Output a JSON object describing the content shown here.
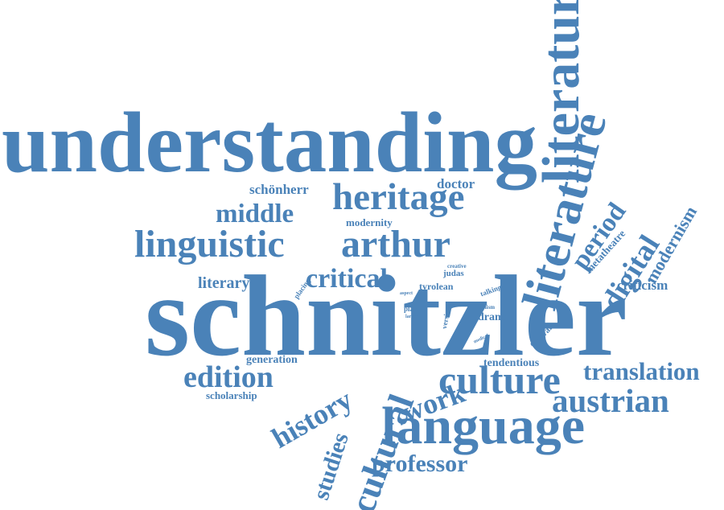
{
  "word_color": "#4A82B8",
  "background": "#FFFFFF",
  "words": [
    {
      "key": "schnitzler",
      "text": "schnitzler"
    },
    {
      "key": "understanding",
      "text": "understanding"
    },
    {
      "key": "literature_top",
      "text": "literature"
    },
    {
      "key": "literature_mid",
      "text": "literature"
    },
    {
      "key": "language",
      "text": "language"
    },
    {
      "key": "culture",
      "text": "culture"
    },
    {
      "key": "linguistic",
      "text": "linguistic"
    },
    {
      "key": "arthur",
      "text": "arthur"
    },
    {
      "key": "heritage",
      "text": "heritage"
    },
    {
      "key": "austrian",
      "text": "austrian"
    },
    {
      "key": "translation",
      "text": "translation"
    },
    {
      "key": "cultural",
      "text": "cultural"
    },
    {
      "key": "history",
      "text": "history"
    },
    {
      "key": "edition",
      "text": "edition"
    },
    {
      "key": "work",
      "text": "work"
    },
    {
      "key": "professor",
      "text": "professor"
    },
    {
      "key": "critical",
      "text": "critical"
    },
    {
      "key": "middle",
      "text": "middle"
    },
    {
      "key": "digital",
      "text": "digital"
    },
    {
      "key": "period",
      "text": "period"
    },
    {
      "key": "studies",
      "text": "studies"
    },
    {
      "key": "modernism",
      "text": "modernism"
    },
    {
      "key": "criticism",
      "text": "criticism"
    },
    {
      "key": "literary",
      "text": "literary"
    },
    {
      "key": "schonherr",
      "text": "schönherr"
    },
    {
      "key": "doctor",
      "text": "doctor"
    },
    {
      "key": "modernity",
      "text": "modernity"
    },
    {
      "key": "metatheatre",
      "text": "metatheatre"
    },
    {
      "key": "generation",
      "text": "generation"
    },
    {
      "key": "scholarship",
      "text": "scholarship"
    },
    {
      "key": "tendentious",
      "text": "tendentious"
    },
    {
      "key": "drama",
      "text": "drama"
    },
    {
      "key": "tyrolean",
      "text": "tyrolean"
    },
    {
      "key": "judas",
      "text": "judas"
    },
    {
      "key": "festival",
      "text": "festival"
    },
    {
      "key": "placing",
      "text": "placing"
    },
    {
      "key": "creative",
      "text": "creative"
    },
    {
      "key": "talking",
      "text": "talking"
    },
    {
      "key": "aspect",
      "text": "aspect"
    },
    {
      "key": "place",
      "text": "place"
    },
    {
      "key": "larger",
      "text": "larger"
    },
    {
      "key": "realism",
      "text": "realism"
    },
    {
      "key": "version",
      "text": "version"
    },
    {
      "key": "medical",
      "text": "medical"
    }
  ]
}
